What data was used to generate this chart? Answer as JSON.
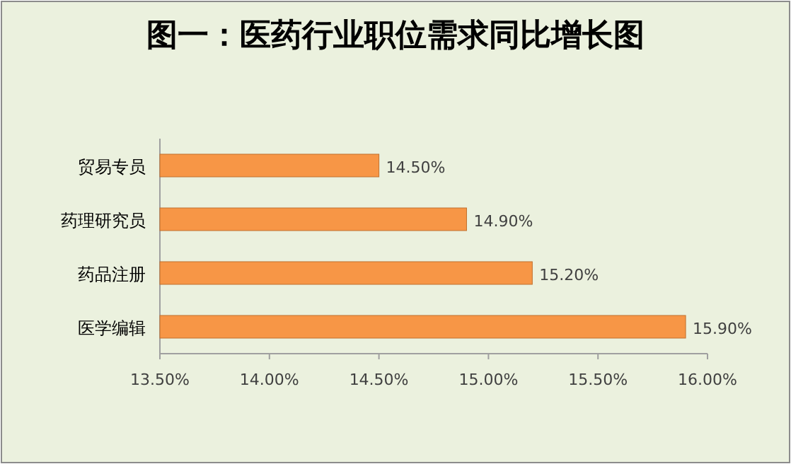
{
  "chart_data": {
    "type": "bar",
    "orientation": "horizontal",
    "title": "图一：医药行业职位需求同比增长图",
    "categories": [
      "贸易专员",
      "药理研究员",
      "药品注册",
      "医学编辑"
    ],
    "values": [
      14.5,
      14.9,
      15.2,
      15.9
    ],
    "value_labels": [
      "14.50%",
      "14.90%",
      "15.20%",
      "15.90%"
    ],
    "color": "#f79646",
    "xlim": [
      13.5,
      16
    ],
    "xticks": [
      {
        "value": 13.5,
        "label": "13.50%"
      },
      {
        "value": 14,
        "label": "14.00%"
      },
      {
        "value": 14.5,
        "label": "14.50%"
      },
      {
        "value": 15,
        "label": "15.00%"
      },
      {
        "value": 15.5,
        "label": "15.50%"
      },
      {
        "value": 16,
        "label": "16.00%"
      }
    ]
  }
}
